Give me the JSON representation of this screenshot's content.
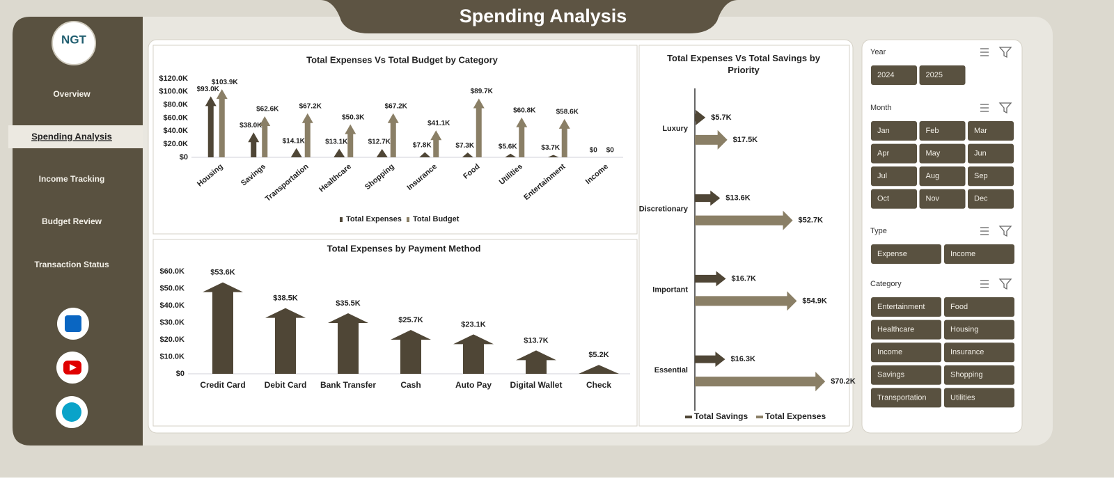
{
  "header": {
    "title": "Spending Analysis"
  },
  "sidebar": {
    "logo": "NGT",
    "nav": [
      "Overview",
      "Spending Analysis",
      "Income Tracking",
      "Budget Review",
      "Transaction Status"
    ],
    "active": 1
  },
  "chart_data": [
    {
      "type": "bar",
      "title": "Total Expenses Vs Total Budget by Category",
      "categories": [
        "Housing",
        "Savings",
        "Transportation",
        "Healthcare",
        "Shopping",
        "Insurance",
        "Food",
        "Utilities",
        "Entertainment",
        "Income"
      ],
      "series": [
        {
          "name": "Total Expenses",
          "color": "#4f4636",
          "values": [
            93000,
            38000,
            14100,
            13100,
            12700,
            7800,
            7300,
            5600,
            3700,
            0
          ],
          "value_labels": [
            "$93.0K",
            "$38.0K",
            "$14.1K",
            "$13.1K",
            "$12.7K",
            "$7.8K",
            "$7.3K",
            "$5.6K",
            "$3.7K",
            "$0"
          ]
        },
        {
          "name": "Total Budget",
          "color": "#8a7f66",
          "values": [
            103900,
            62600,
            67200,
            50300,
            67200,
            41100,
            89700,
            60800,
            58600,
            0
          ],
          "value_labels": [
            "$103.9K",
            "$62.6K",
            "$67.2K",
            "$50.3K",
            "$67.2K",
            "$41.1K",
            "$89.7K",
            "$60.8K",
            "$58.6K",
            "$0"
          ]
        }
      ],
      "ylim": [
        0,
        120000
      ],
      "yticks": [
        {
          "value": 0,
          "label": "$0"
        },
        {
          "value": 20000,
          "label": "$20.0K"
        },
        {
          "value": 40000,
          "label": "$40.0K"
        },
        {
          "value": 60000,
          "label": "$60.0K"
        },
        {
          "value": 80000,
          "label": "$80.0K"
        },
        {
          "value": 100000,
          "label": "$100.0K"
        },
        {
          "value": 120000,
          "label": "$120.0K"
        }
      ],
      "legend": "bottom"
    },
    {
      "type": "bar",
      "title": "Total Expenses by Payment Method",
      "categories": [
        "Credit Card",
        "Debit Card",
        "Bank Transfer",
        "Cash",
        "Auto Pay",
        "Digital Wallet",
        "Check"
      ],
      "series": [
        {
          "name": "Total Expenses",
          "color": "#4f4636",
          "values": [
            53600,
            38500,
            35500,
            25700,
            23100,
            13700,
            5200
          ],
          "value_labels": [
            "$53.6K",
            "$38.5K",
            "$35.5K",
            "$25.7K",
            "$23.1K",
            "$13.7K",
            "$5.2K"
          ]
        }
      ],
      "ylim": [
        0,
        60000
      ],
      "yticks": [
        {
          "value": 0,
          "label": "$0"
        },
        {
          "value": 10000,
          "label": "$10.0K"
        },
        {
          "value": 20000,
          "label": "$20.0K"
        },
        {
          "value": 30000,
          "label": "$30.0K"
        },
        {
          "value": 40000,
          "label": "$40.0K"
        },
        {
          "value": 50000,
          "label": "$50.0K"
        },
        {
          "value": 60000,
          "label": "$60.0K"
        }
      ],
      "legend": "none"
    },
    {
      "type": "bar",
      "orientation": "horizontal",
      "title": "Total Expenses Vs Total Savings by Priority",
      "categories": [
        "Luxury",
        "Discretionary",
        "Important",
        "Essential"
      ],
      "series": [
        {
          "name": "Total Savings",
          "color": "#4f4636",
          "values": [
            5700,
            13600,
            16700,
            16300
          ],
          "value_labels": [
            "$5.7K",
            "$13.6K",
            "$16.7K",
            "$16.3K"
          ]
        },
        {
          "name": "Total Expenses",
          "color": "#8a7f66",
          "values": [
            17500,
            52700,
            54900,
            70200
          ],
          "value_labels": [
            "$17.5K",
            "$52.7K",
            "$54.9K",
            "$70.2K"
          ]
        }
      ],
      "xlim": [
        0,
        75000
      ],
      "legend": "bottom"
    }
  ],
  "slicers": [
    {
      "title": "Year",
      "items": [
        "2024",
        "2025"
      ]
    },
    {
      "title": "Month",
      "items": [
        "Jan",
        "Feb",
        "Mar",
        "Apr",
        "May",
        "Jun",
        "Jul",
        "Aug",
        "Sep",
        "Oct",
        "Nov",
        "Dec"
      ]
    },
    {
      "title": "Type",
      "items": [
        "Expense",
        "Income"
      ]
    },
    {
      "title": "Category",
      "items": [
        "Entertainment",
        "Food",
        "Healthcare",
        "Housing",
        "Income",
        "Insurance",
        "Savings",
        "Shopping",
        "Transportation",
        "Utilities"
      ]
    }
  ]
}
